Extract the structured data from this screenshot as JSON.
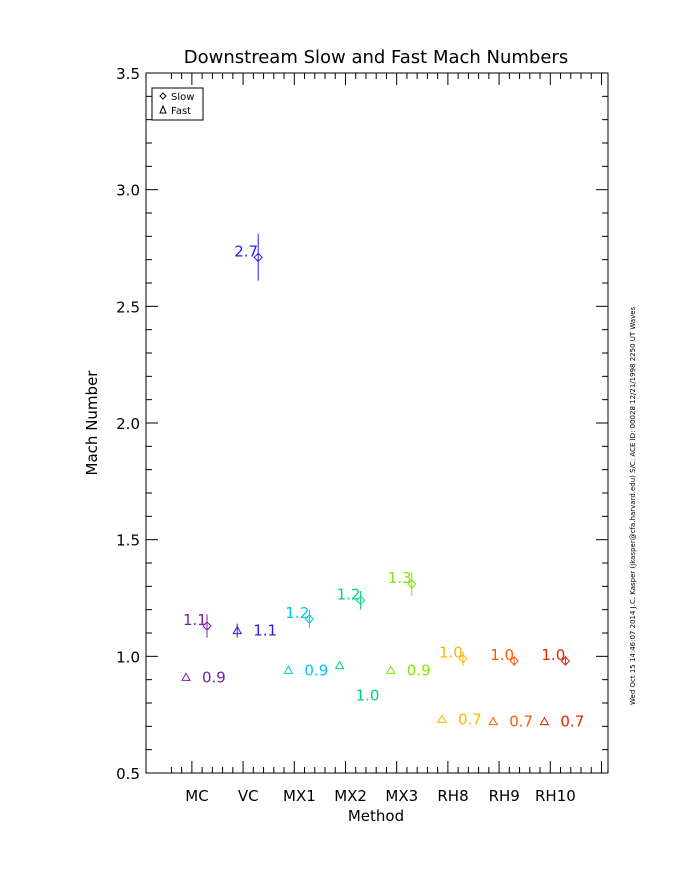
{
  "chart_data": {
    "type": "scatter",
    "title": "Downstream Slow and Fast Mach Numbers",
    "xlabel": "Method",
    "ylabel": "Mach Number",
    "ylim": [
      0.5,
      3.5
    ],
    "y_tick_labels": [
      "0.5",
      "1.0",
      "1.5",
      "2.0",
      "2.5",
      "3.0",
      "3.5"
    ],
    "y_tick_values": [
      0.5,
      1.0,
      1.5,
      2.0,
      2.5,
      3.0,
      3.5
    ],
    "categories": [
      "MC",
      "VC",
      "MX1",
      "MX2",
      "MX3",
      "RH8",
      "RH9",
      "RH10"
    ],
    "category_colors": [
      "#7b1fa2",
      "#1f1fe0",
      "#00c8e6",
      "#00d27a",
      "#7ee600",
      "#f5b800",
      "#ff5a00",
      "#e82200"
    ],
    "legend": {
      "placement": "top-left",
      "entries": [
        {
          "marker": "diamond",
          "label": "Slow"
        },
        {
          "marker": "triangle",
          "label": "Fast"
        }
      ]
    },
    "series": [
      {
        "name": "Slow",
        "marker": "diamond",
        "values": [
          1.13,
          2.71,
          1.16,
          1.24,
          1.31,
          0.99,
          0.98,
          0.98
        ],
        "errors": [
          0.05,
          0.1,
          0.04,
          0.04,
          0.05,
          0.03,
          0.02,
          0.02
        ],
        "labels": [
          "1.1",
          "2.7",
          "1.2",
          "1.2",
          "1.3",
          "1.0",
          "1.0",
          "1.0"
        ]
      },
      {
        "name": "Fast",
        "marker": "triangle",
        "values": [
          0.91,
          1.11,
          0.94,
          0.96,
          0.94,
          0.73,
          0.72,
          0.72
        ],
        "errors": [
          0.0,
          0.03,
          0.0,
          0.0,
          0.0,
          0.0,
          0.0,
          0.0
        ],
        "labels": [
          "0.9",
          "1.1",
          "0.9",
          "1.0",
          "0.9",
          "0.7",
          "0.7",
          "0.7"
        ]
      }
    ],
    "grid": false
  },
  "side_note": "Wed Oct 15 14:46:07 2014   J.C. Kasper (jkasper@cfa.harvard.edu)   S/C: ACE ID: 00028 12/21/1998   2250 UT Waves"
}
